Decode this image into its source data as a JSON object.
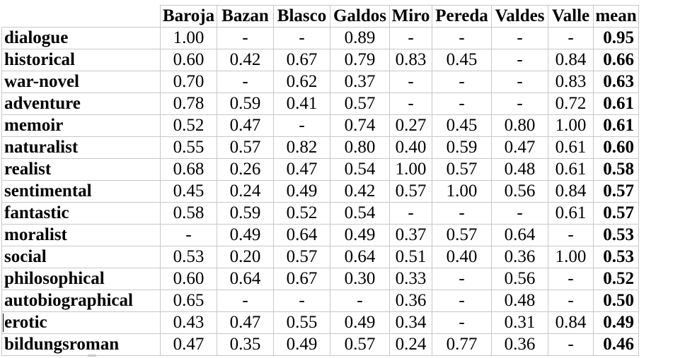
{
  "table": {
    "corner": "",
    "columns": [
      "Baroja",
      "Bazan",
      "Blasco",
      "Galdos",
      "Miro",
      "Pereda",
      "Valdes",
      "Valle",
      "mean"
    ],
    "rows": [
      {
        "label": "dialogue",
        "values": [
          "1.00",
          "-",
          "-",
          "0.89",
          "-",
          "-",
          "-",
          "-"
        ],
        "mean": "0.95"
      },
      {
        "label": "historical",
        "values": [
          "0.60",
          "0.42",
          "0.67",
          "0.79",
          "0.83",
          "0.45",
          "-",
          "0.84"
        ],
        "mean": "0.66"
      },
      {
        "label": "war-novel",
        "values": [
          "0.70",
          "-",
          "0.62",
          "0.37",
          "-",
          "-",
          "-",
          "0.83"
        ],
        "mean": "0.63"
      },
      {
        "label": "adventure",
        "values": [
          "0.78",
          "0.59",
          "0.41",
          "0.57",
          "-",
          "-",
          "-",
          "0.72"
        ],
        "mean": "0.61"
      },
      {
        "label": "memoir",
        "values": [
          "0.52",
          "0.47",
          "-",
          "0.74",
          "0.27",
          "0.45",
          "0.80",
          "1.00"
        ],
        "mean": "0.61"
      },
      {
        "label": "naturalist",
        "values": [
          "0.55",
          "0.57",
          "0.82",
          "0.80",
          "0.40",
          "0.59",
          "0.47",
          "0.61"
        ],
        "mean": "0.60"
      },
      {
        "label": "realist",
        "values": [
          "0.68",
          "0.26",
          "0.47",
          "0.54",
          "1.00",
          "0.57",
          "0.48",
          "0.61"
        ],
        "mean": "0.58"
      },
      {
        "label": "sentimental",
        "values": [
          "0.45",
          "0.24",
          "0.49",
          "0.42",
          "0.57",
          "1.00",
          "0.56",
          "0.84"
        ],
        "mean": "0.57"
      },
      {
        "label": "fantastic",
        "values": [
          "0.58",
          "0.59",
          "0.52",
          "0.54",
          "-",
          "-",
          "-",
          "0.61"
        ],
        "mean": "0.57"
      },
      {
        "label": "moralist",
        "values": [
          "-",
          "0.49",
          "0.64",
          "0.49",
          "0.37",
          "0.57",
          "0.64",
          "-"
        ],
        "mean": "0.53"
      },
      {
        "label": "social",
        "values": [
          "0.53",
          "0.20",
          "0.57",
          "0.64",
          "0.51",
          "0.40",
          "0.36",
          "1.00"
        ],
        "mean": "0.53"
      },
      {
        "label": "philosophical",
        "values": [
          "0.60",
          "0.64",
          "0.67",
          "0.30",
          "0.33",
          "-",
          "0.56",
          "-"
        ],
        "mean": "0.52"
      },
      {
        "label": "autobiographical",
        "values": [
          "0.65",
          "-",
          "-",
          "-",
          "0.36",
          "-",
          "0.48",
          "-"
        ],
        "mean": "0.50"
      },
      {
        "label": "erotic",
        "values": [
          "0.43",
          "0.47",
          "0.55",
          "0.49",
          "0.34",
          "-",
          "0.31",
          "0.84"
        ],
        "mean": "0.49"
      },
      {
        "label": "bildungsroman",
        "values": [
          "0.47",
          "0.35",
          "0.49",
          "0.57",
          "0.24",
          "0.77",
          "0.36",
          "-"
        ],
        "mean": "0.46"
      }
    ]
  }
}
